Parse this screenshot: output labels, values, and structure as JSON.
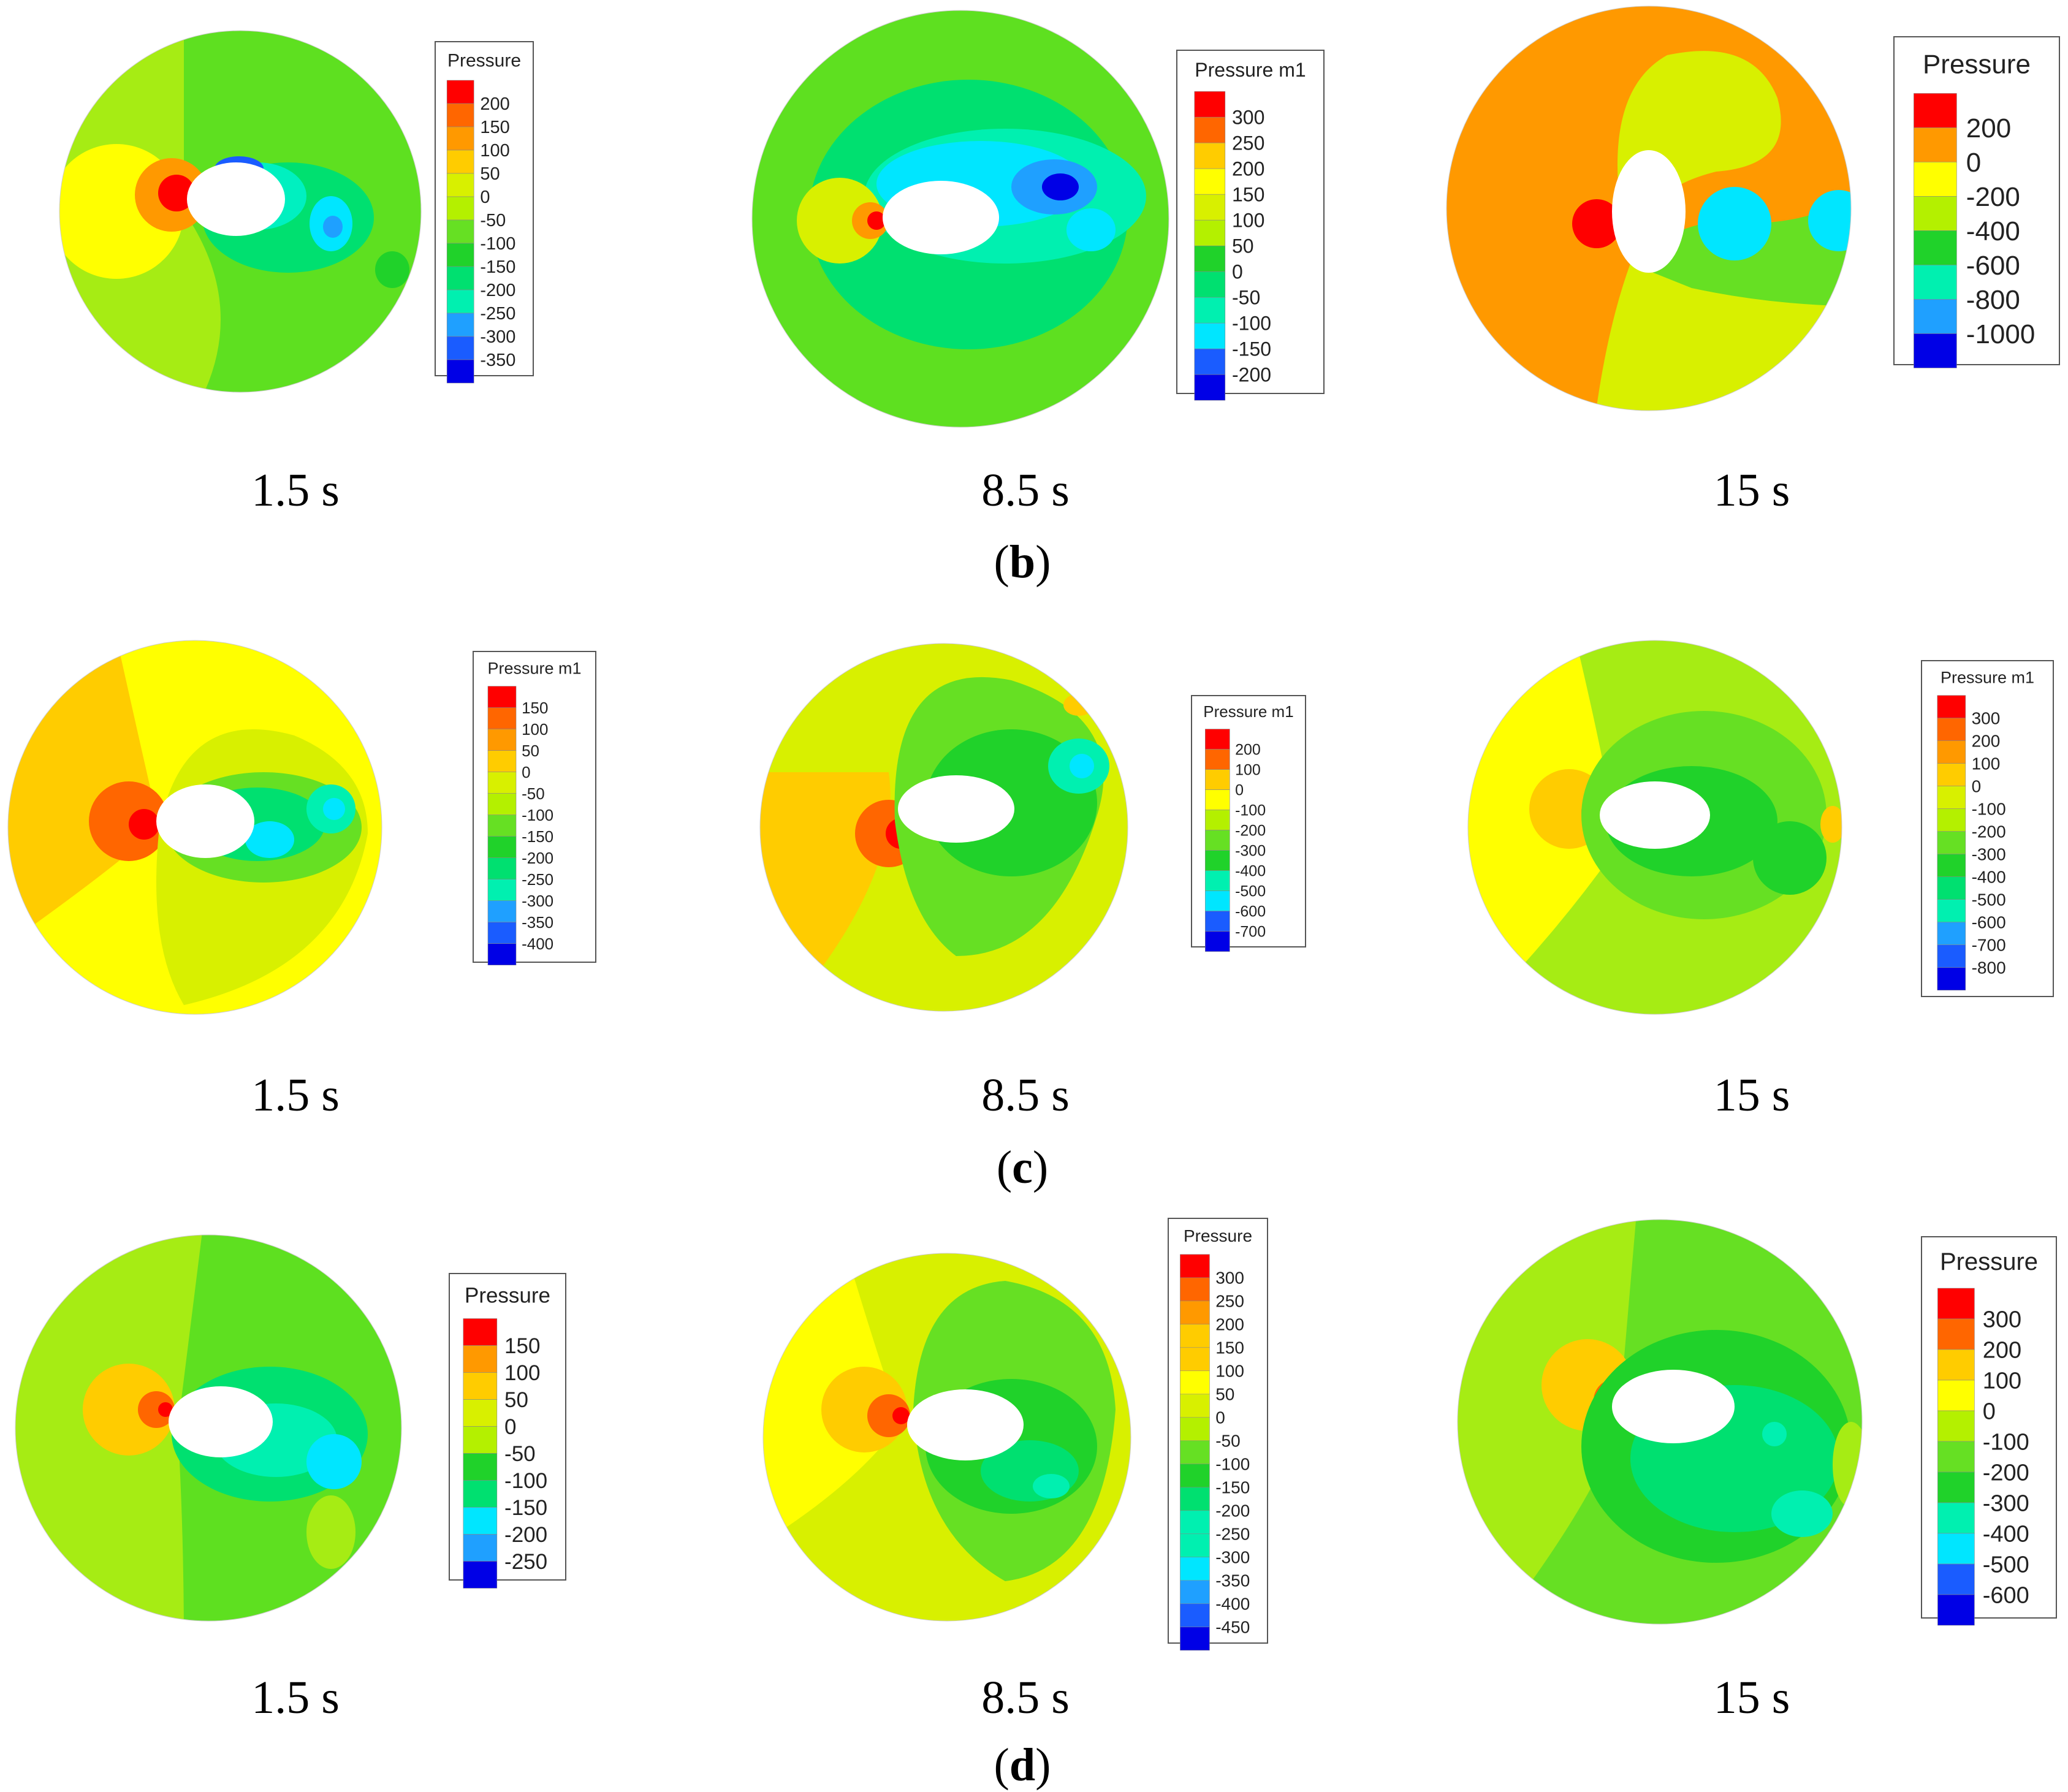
{
  "figure": {
    "colors": {
      "ramp": [
        "#0000e6",
        "#1a5cff",
        "#1fa0ff",
        "#00e6ff",
        "#00f0b0",
        "#00e070",
        "#20d22a",
        "#66e023",
        "#b4f000",
        "#d8f000",
        "#ffff00",
        "#ffcc00",
        "#ff9900",
        "#ff6600",
        "#ff0000"
      ],
      "legend_border": "#555555",
      "body": "#ffffff"
    },
    "rows": [
      {
        "label": {
          "open": "(",
          "letter": "b",
          "close": ")"
        },
        "panels": [
          {
            "time": "1.5 s",
            "legend": {
              "title": "Pressure",
              "ticks": [
                "200",
                "150",
                "100",
                "50",
                "0",
                "-50",
                "-100",
                "-150",
                "-200",
                "-250",
                "-300",
                "-350"
              ]
            }
          },
          {
            "time": "8.5 s",
            "legend": {
              "title": "Pressure m1",
              "ticks": [
                "300",
                "250",
                "200",
                "150",
                "100",
                "50",
                "0",
                "-50",
                "-100",
                "-150",
                "-200"
              ]
            }
          },
          {
            "time": "15 s",
            "legend": {
              "title": "Pressure",
              "ticks": [
                "200",
                "0",
                "-200",
                "-400",
                "-600",
                "-800",
                "-1000"
              ]
            }
          }
        ]
      },
      {
        "label": {
          "open": "(",
          "letter": "c",
          "close": ")"
        },
        "panels": [
          {
            "time": "1.5 s",
            "legend": {
              "title": "Pressure m1",
              "ticks": [
                "150",
                "100",
                "50",
                "0",
                "-50",
                "-100",
                "-150",
                "-200",
                "-250",
                "-300",
                "-350",
                "-400"
              ]
            }
          },
          {
            "time": "8.5 s",
            "legend": {
              "title": "Pressure m1",
              "ticks": [
                "200",
                "100",
                "0",
                "-100",
                "-200",
                "-300",
                "-400",
                "-500",
                "-600",
                "-700"
              ]
            }
          },
          {
            "time": "15 s",
            "legend": {
              "title": "Pressure m1",
              "ticks": [
                "300",
                "200",
                "100",
                "0",
                "-100",
                "-200",
                "-300",
                "-400",
                "-500",
                "-600",
                "-700",
                "-800"
              ]
            }
          }
        ]
      },
      {
        "label": {
          "open": "(",
          "letter": "d",
          "close": ")"
        },
        "panels": [
          {
            "time": "1.5 s",
            "legend": {
              "title": "Pressure",
              "ticks": [
                "150",
                "100",
                "50",
                "0",
                "-50",
                "-100",
                "-150",
                "-200",
                "-250"
              ]
            }
          },
          {
            "time": "8.5 s",
            "legend": {
              "title": "Pressure",
              "ticks": [
                "300",
                "250",
                "200",
                "150",
                "100",
                "50",
                "0",
                "-50",
                "-100",
                "-150",
                "-200",
                "-250",
                "-300",
                "-350",
                "-400",
                "-450"
              ]
            }
          },
          {
            "time": "15 s",
            "legend": {
              "title": "Pressure",
              "ticks": [
                "300",
                "200",
                "100",
                "0",
                "-100",
                "-200",
                "-300",
                "-400",
                "-500",
                "-600"
              ]
            }
          }
        ]
      }
    ]
  }
}
